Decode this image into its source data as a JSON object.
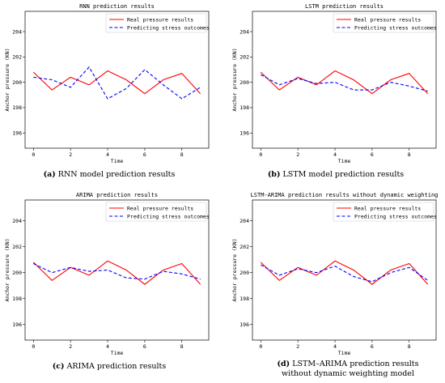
{
  "chart_data": [
    {
      "type": "line",
      "title": "RNN prediction results",
      "xlabel": "Time",
      "ylabel": "Anchor pressure (KN)",
      "xlim": [
        -0.45,
        9.45
      ],
      "ylim": [
        194.8,
        205.6
      ],
      "xticks": [
        0,
        2,
        4,
        6,
        8
      ],
      "yticks": [
        196,
        198,
        200,
        202,
        204
      ],
      "legend": "top-right",
      "grid": false,
      "x": [
        0,
        1,
        2,
        3,
        4,
        5,
        6,
        7,
        8,
        9
      ],
      "series": [
        {
          "name": "Real pressure results",
          "color": "#ff0000",
          "style": "solid",
          "values": [
            200.8,
            199.4,
            200.4,
            199.8,
            200.9,
            200.2,
            199.1,
            200.2,
            200.7,
            199.1
          ]
        },
        {
          "name": "Predicting stress outcomes",
          "color": "#0000ff",
          "style": "dashed",
          "values": [
            200.4,
            200.2,
            199.6,
            201.2,
            198.7,
            199.5,
            201.0,
            199.8,
            198.7,
            199.6
          ]
        }
      ],
      "caption_label": "(a)",
      "caption_text": "RNN model prediction results"
    },
    {
      "type": "line",
      "title": "LSTM prediction results",
      "xlabel": "Time",
      "ylabel": "Anchor pressure (KN)",
      "xlim": [
        -0.45,
        9.45
      ],
      "ylim": [
        194.8,
        205.6
      ],
      "xticks": [
        0,
        2,
        4,
        6,
        8
      ],
      "yticks": [
        196,
        198,
        200,
        202,
        204
      ],
      "legend": "top-right",
      "grid": false,
      "x": [
        0,
        1,
        2,
        3,
        4,
        5,
        6,
        7,
        8,
        9
      ],
      "series": [
        {
          "name": "Real pressure results",
          "color": "#ff0000",
          "style": "solid",
          "values": [
            200.8,
            199.4,
            200.4,
            199.8,
            200.9,
            200.2,
            199.1,
            200.2,
            200.7,
            199.1
          ]
        },
        {
          "name": "Predicting stress outcomes",
          "color": "#0000ff",
          "style": "dashed",
          "values": [
            200.6,
            199.8,
            200.3,
            199.9,
            200.0,
            199.4,
            199.4,
            200.0,
            199.7,
            199.3
          ]
        }
      ],
      "caption_label": "(b)",
      "caption_text": "LSTM model prediction results"
    },
    {
      "type": "line",
      "title": "ARIMA prediction results",
      "xlabel": "Time",
      "ylabel": "Anchor pressure (KN)",
      "xlim": [
        -0.45,
        9.45
      ],
      "ylim": [
        194.8,
        205.6
      ],
      "xticks": [
        0,
        2,
        4,
        6,
        8
      ],
      "yticks": [
        196,
        198,
        200,
        202,
        204
      ],
      "legend": "top-right",
      "grid": false,
      "x": [
        0,
        1,
        2,
        3,
        4,
        5,
        6,
        7,
        8,
        9
      ],
      "series": [
        {
          "name": "Real pressure results",
          "color": "#ff0000",
          "style": "solid",
          "values": [
            200.8,
            199.4,
            200.4,
            199.8,
            200.9,
            200.2,
            199.1,
            200.2,
            200.7,
            199.1
          ]
        },
        {
          "name": "Predicting stress outcomes",
          "color": "#0000ff",
          "style": "dashed",
          "values": [
            200.7,
            200.0,
            200.4,
            200.1,
            200.2,
            199.6,
            199.5,
            200.1,
            199.9,
            199.5
          ]
        }
      ],
      "caption_label": "(c)",
      "caption_text": "ARIMA prediction results"
    },
    {
      "type": "line",
      "title": "LSTM-ARIMA prediction results without dynamic weighting",
      "xlabel": "Time",
      "ylabel": "Anchor pressure (KN)",
      "xlim": [
        -0.45,
        9.45
      ],
      "ylim": [
        194.8,
        205.6
      ],
      "xticks": [
        0,
        2,
        4,
        6,
        8
      ],
      "yticks": [
        196,
        198,
        200,
        202,
        204
      ],
      "legend": "top-right",
      "grid": false,
      "x": [
        0,
        1,
        2,
        3,
        4,
        5,
        6,
        7,
        8,
        9
      ],
      "series": [
        {
          "name": "Real pressure results",
          "color": "#ff0000",
          "style": "solid",
          "values": [
            200.8,
            199.4,
            200.4,
            199.8,
            200.9,
            200.2,
            199.1,
            200.2,
            200.7,
            199.1
          ]
        },
        {
          "name": "Predicting stress outcomes",
          "color": "#0000ff",
          "style": "dashed",
          "values": [
            200.6,
            199.8,
            200.3,
            200.0,
            200.5,
            199.7,
            199.3,
            200.0,
            200.4,
            199.4
          ]
        }
      ],
      "caption_label": "(d)",
      "caption_text": "LSTM–ARIMA prediction results without dynamic weighting model"
    }
  ]
}
